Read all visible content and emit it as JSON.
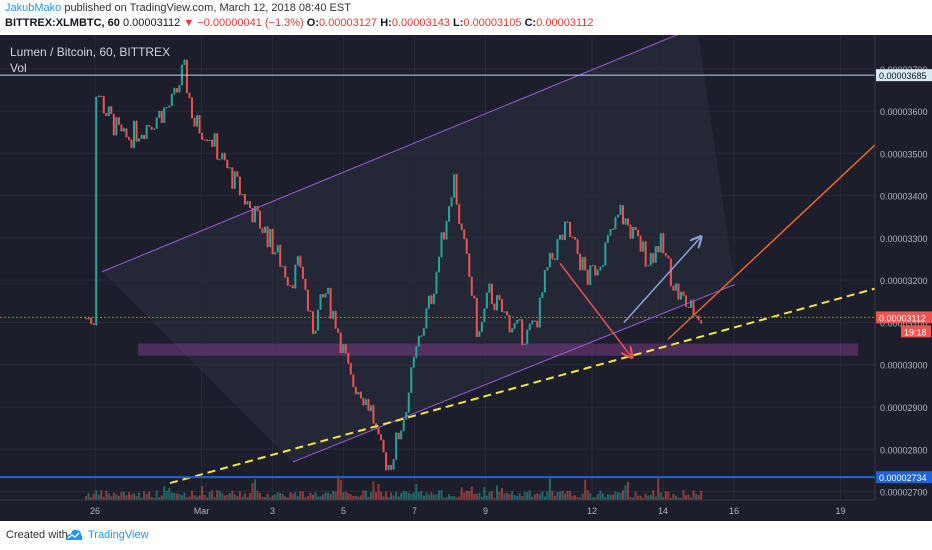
{
  "header": {
    "author": "JakubMako",
    "published": " published on TradingView.com, March 12, 2018 08:40 EST",
    "symbol": "BITTREX:XLMBTC, 60",
    "last": "0.00003112",
    "arrow": "▼",
    "change": "−0.00000041 (−1.3%)",
    "o_label": "O:",
    "o_value": "0.00003127",
    "h_label": "H:",
    "h_value": "0.00003143",
    "l_label": "L:",
    "l_value": "0.00003105",
    "c_label": "C:",
    "c_value": "0.00003112"
  },
  "legend": {
    "title": "Lumen / Bitcoin, 60, BITTREX",
    "volume_label": "Vol"
  },
  "footer": {
    "created_with": "Created with",
    "brand": "TradingView"
  },
  "colors": {
    "background": "#1c1f2b",
    "up_candle": "#26a69a",
    "down_candle": "#ef5350",
    "channel": "#9c5bd6",
    "support_zone": "#8e3f95",
    "trendline": "#f5e63b",
    "orange_line": "#e8662c",
    "blue_arrow": "#8da2d8",
    "red_arrow": "#ef5350",
    "support_line": "#1e63d8",
    "resistance_line": "#b6d5e8"
  },
  "chart_data": {
    "type": "candlestick",
    "title": "Lumen / Bitcoin, 60, BITTREX",
    "interval": "60",
    "x_ticks": [
      "26",
      "Mar",
      "3",
      "5",
      "7",
      "9",
      "12",
      "14",
      "16",
      "19"
    ],
    "y_ticks": [
      "0.00002700",
      "0.00002800",
      "0.00002900",
      "0.00003000",
      "0.00003100",
      "0.00003200",
      "0.00003300",
      "0.00003400",
      "0.00003500",
      "0.00003600",
      "0.00003700"
    ],
    "ylim": [
      2.68e-05,
      3.78e-05
    ],
    "price_labels": [
      {
        "text": "0.00003685",
        "value": 3.685e-05
      },
      {
        "text": "0.00003112",
        "value": 3.112e-05
      },
      {
        "text": "0.00002734",
        "value": 2.734e-05
      }
    ],
    "countdown": "19:18",
    "close_path": [
      {
        "d": 0,
        "p": 3.66
      },
      {
        "d": 0.3,
        "p": 3.6
      },
      {
        "d": 0.8,
        "p": 3.53
      },
      {
        "d": 1.5,
        "p": 3.57
      },
      {
        "d": 2.2,
        "p": 3.62
      },
      {
        "d": 2.5,
        "p": 3.7
      },
      {
        "d": 2.8,
        "p": 3.57
      },
      {
        "d": 3.2,
        "p": 3.55
      },
      {
        "d": 3.6,
        "p": 3.48
      },
      {
        "d": 4.3,
        "p": 3.38
      },
      {
        "d": 4.9,
        "p": 3.3
      },
      {
        "d": 5.5,
        "p": 3.2
      },
      {
        "d": 5.8,
        "p": 3.24
      },
      {
        "d": 6.1,
        "p": 3.08
      },
      {
        "d": 6.5,
        "p": 3.17
      },
      {
        "d": 6.8,
        "p": 3.1
      },
      {
        "d": 7.2,
        "p": 2.96
      },
      {
        "d": 7.5,
        "p": 2.94
      },
      {
        "d": 7.8,
        "p": 2.89
      },
      {
        "d": 8.0,
        "p": 2.8
      },
      {
        "d": 8.3,
        "p": 2.76
      },
      {
        "d": 8.7,
        "p": 2.88
      },
      {
        "d": 9.1,
        "p": 3.05
      },
      {
        "d": 9.5,
        "p": 3.17
      },
      {
        "d": 9.9,
        "p": 3.35
      },
      {
        "d": 10.1,
        "p": 3.45
      },
      {
        "d": 10.3,
        "p": 3.32
      },
      {
        "d": 10.6,
        "p": 3.18
      },
      {
        "d": 10.8,
        "p": 3.06
      },
      {
        "d": 11.1,
        "p": 3.17
      },
      {
        "d": 11.5,
        "p": 3.12
      },
      {
        "d": 11.9,
        "p": 3.08
      },
      {
        "d": 12.2,
        "p": 3.07
      },
      {
        "d": 12.5,
        "p": 3.12
      },
      {
        "d": 12.7,
        "p": 3.21
      },
      {
        "d": 13.0,
        "p": 3.28
      },
      {
        "d": 13.3,
        "p": 3.32
      },
      {
        "d": 13.6,
        "p": 3.26
      },
      {
        "d": 13.9,
        "p": 3.2
      },
      {
        "d": 14.4,
        "p": 3.28
      },
      {
        "d": 14.8,
        "p": 3.36
      },
      {
        "d": 15.2,
        "p": 3.3
      },
      {
        "d": 15.6,
        "p": 3.25
      },
      {
        "d": 15.9,
        "p": 3.29
      },
      {
        "d": 16.2,
        "p": 3.22
      },
      {
        "d": 16.4,
        "p": 3.17
      },
      {
        "d": 16.8,
        "p": 3.13
      },
      {
        "d": 17.1,
        "p": 3.11
      }
    ],
    "volume_level": "low, with occasional spikes",
    "drawings": [
      {
        "kind": "ascending channel upper line",
        "color": "purple"
      },
      {
        "kind": "ascending channel lower line",
        "color": "purple"
      },
      {
        "kind": "support zone rectangle",
        "color": "purple"
      },
      {
        "kind": "dashed trendline",
        "color": "yellow"
      },
      {
        "kind": "line",
        "color": "orange"
      },
      {
        "kind": "arrow up",
        "color": "light blue"
      },
      {
        "kind": "arrow down",
        "color": "red"
      },
      {
        "kind": "horizontal line at 0.00003685",
        "color": "light blue"
      },
      {
        "kind": "horizontal line at 0.00002734",
        "color": "blue"
      }
    ]
  }
}
